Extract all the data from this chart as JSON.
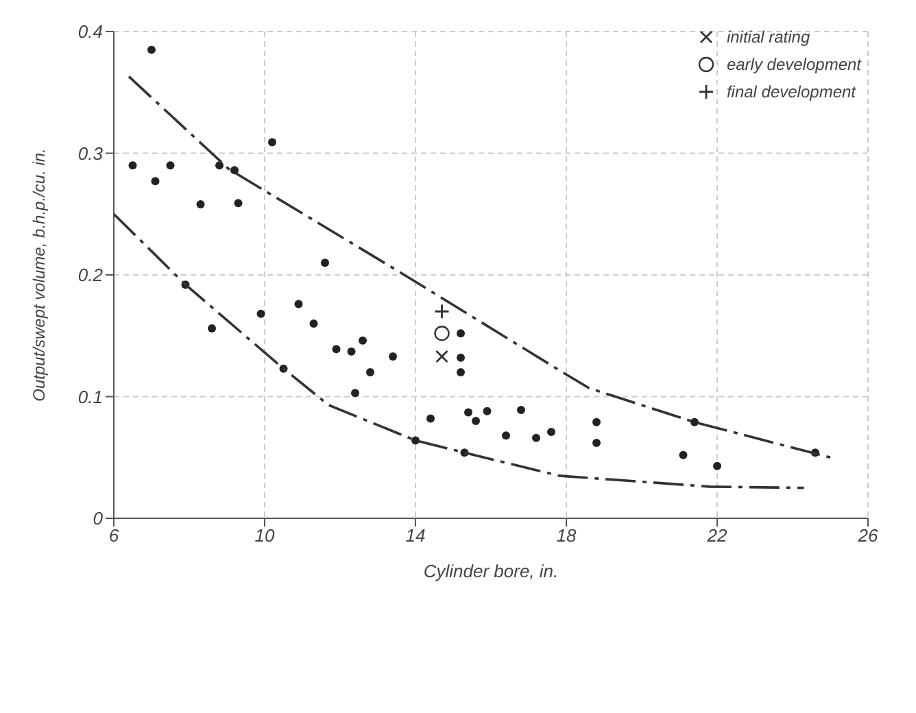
{
  "chart_data": {
    "type": "scatter",
    "xlabel": "Cylinder bore, in.",
    "ylabel": "Output/swept volume, b.h.p./cu. in.",
    "xlim": [
      6,
      26
    ],
    "xticks": [
      6,
      10,
      14,
      18,
      22,
      26
    ],
    "ylim": [
      0,
      0.4
    ],
    "yticks": [
      0,
      0.1,
      0.2,
      0.3,
      0.4
    ],
    "grid": true,
    "legend": "top right",
    "series": [
      {
        "color": "#222222",
        "marker": "circle",
        "x": [
          7.0,
          6.5,
          7.1,
          7.5,
          8.3,
          8.8,
          9.2,
          9.3,
          10.2,
          11.6,
          7.9,
          8.6,
          9.9,
          10.9,
          11.3,
          11.9,
          12.3,
          12.6,
          12.8,
          13.4,
          12.4,
          10.5,
          14.4,
          14.0,
          15.2,
          15.2,
          15.2,
          15.4,
          15.6,
          15.9,
          16.4,
          16.8,
          17.2,
          17.6,
          18.8,
          18.8,
          21.1,
          22.0,
          21.4,
          24.6,
          15.3
        ],
        "values": [
          0.385,
          0.29,
          0.277,
          0.29,
          0.258,
          0.29,
          0.286,
          0.259,
          0.309,
          0.21,
          0.192,
          0.156,
          0.168,
          0.176,
          0.16,
          0.139,
          0.137,
          0.146,
          0.12,
          0.133,
          0.103,
          0.123,
          0.082,
          0.064,
          0.152,
          0.132,
          0.12,
          0.087,
          0.08,
          0.088,
          0.068,
          0.089,
          0.066,
          0.071,
          0.079,
          0.062,
          0.052,
          0.043,
          0.079,
          0.054,
          0.054
        ]
      },
      {
        "name": "initial rating",
        "color": "#333333",
        "marker": "cross",
        "x": [
          14.7
        ],
        "values": [
          0.133
        ]
      },
      {
        "name": "early development",
        "color": "#333333",
        "marker": "circle_open",
        "x": [
          14.7
        ],
        "values": [
          0.152
        ]
      },
      {
        "name": "final development",
        "color": "#333333",
        "marker": "plus",
        "x": [
          14.7
        ],
        "values": [
          0.17
        ]
      },
      {
        "type": "line",
        "color": "#333333",
        "line_style": "dashed",
        "marker": "none",
        "x": [
          6.4,
          9.05,
          13.6,
          17.9,
          18.6,
          21.4,
          25.0
        ],
        "values": [
          0.363,
          0.287,
          0.202,
          0.12,
          0.107,
          0.079,
          0.05
        ]
      },
      {
        "type": "line",
        "color": "#333333",
        "line_style": "dashed",
        "marker": "none",
        "x": [
          6.0,
          7.9,
          10.5,
          11.7,
          14.0,
          15.3,
          17.8,
          21.8,
          24.3
        ],
        "values": [
          0.25,
          0.192,
          0.123,
          0.093,
          0.064,
          0.054,
          0.035,
          0.026,
          0.025
        ]
      }
    ]
  }
}
